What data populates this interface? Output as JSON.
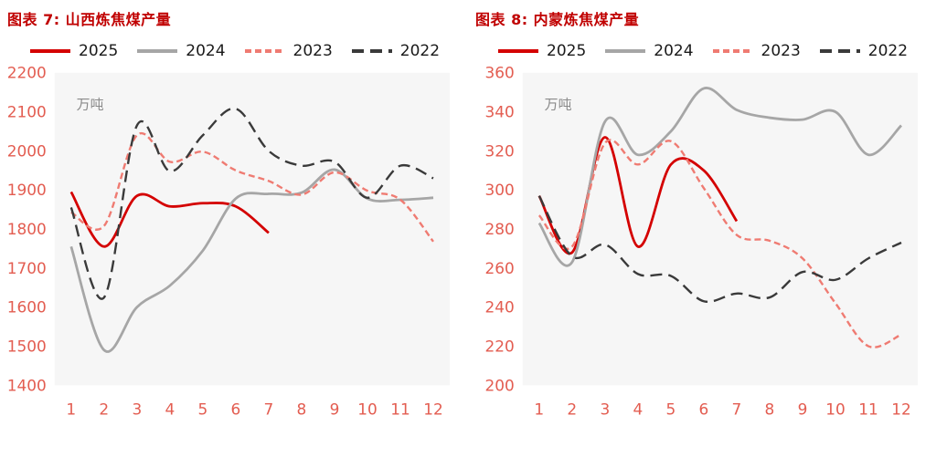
{
  "style": {
    "title_color": "#c00000",
    "tick_color": "#e35d51",
    "unit_color": "#8a8a8a",
    "legend_text_color": "#1a1a1a",
    "plot_bg": "#f6f6f6",
    "page_bg": "#ffffff"
  },
  "chart_data": [
    {
      "type": "line",
      "title": "图表 7: 山西炼焦煤产量",
      "unit": "万吨",
      "x": [
        1,
        2,
        3,
        4,
        5,
        6,
        7,
        8,
        9,
        10,
        11,
        12
      ],
      "xlabel": "",
      "ylabel": "",
      "ylim": [
        1400,
        2200
      ],
      "yticks": [
        1400,
        1500,
        1600,
        1700,
        1800,
        1900,
        2000,
        2100,
        2200
      ],
      "legend_position": "top",
      "grid": false,
      "series": [
        {
          "name": "2025",
          "color": "#d40000",
          "dash": null,
          "width": 2.8,
          "values": [
            1895,
            1755,
            1885,
            1858,
            1866,
            1858,
            1790,
            null,
            null,
            null,
            null,
            null
          ]
        },
        {
          "name": "2024",
          "color": "#a6a6a6",
          "dash": null,
          "width": 2.8,
          "values": [
            1755,
            1490,
            1600,
            1655,
            1745,
            1878,
            1890,
            1893,
            1952,
            1878,
            1875,
            1880
          ]
        },
        {
          "name": "2023",
          "color": "#ef7b72",
          "dash": "7 4",
          "width": 2.4,
          "values": [
            1843,
            1808,
            2040,
            1972,
            1998,
            1950,
            1923,
            1888,
            1945,
            1898,
            1875,
            1768
          ]
        },
        {
          "name": "2022",
          "color": "#3a3a3a",
          "dash": "13 7",
          "width": 2.4,
          "values": [
            1855,
            1625,
            2065,
            1948,
            2040,
            2108,
            2000,
            1962,
            1972,
            1880,
            1962,
            1930
          ]
        }
      ]
    },
    {
      "type": "line",
      "title": "图表 8: 内蒙炼焦煤产量",
      "unit": "万吨",
      "x": [
        1,
        2,
        3,
        4,
        5,
        6,
        7,
        8,
        9,
        10,
        11,
        12
      ],
      "xlabel": "",
      "ylabel": "",
      "ylim": [
        200,
        360
      ],
      "yticks": [
        200,
        220,
        240,
        260,
        280,
        300,
        320,
        340,
        360
      ],
      "legend_position": "top",
      "grid": false,
      "series": [
        {
          "name": "2025",
          "color": "#d40000",
          "dash": null,
          "width": 2.8,
          "values": [
            297,
            268,
            327,
            271,
            313,
            310,
            284,
            null,
            null,
            null,
            null,
            null
          ]
        },
        {
          "name": "2024",
          "color": "#a6a6a6",
          "dash": null,
          "width": 2.8,
          "values": [
            283,
            263,
            335,
            318,
            330,
            352,
            341,
            337,
            336,
            340,
            318,
            333
          ]
        },
        {
          "name": "2023",
          "color": "#ef7b72",
          "dash": "7 4",
          "width": 2.4,
          "values": [
            287,
            271,
            324,
            313,
            325,
            301,
            277,
            274,
            265,
            242,
            220,
            226
          ]
        },
        {
          "name": "2022",
          "color": "#3a3a3a",
          "dash": "13 7",
          "width": 2.4,
          "values": [
            297,
            266,
            272,
            257,
            256,
            243,
            247,
            245,
            258,
            254,
            265,
            273
          ]
        }
      ]
    }
  ]
}
